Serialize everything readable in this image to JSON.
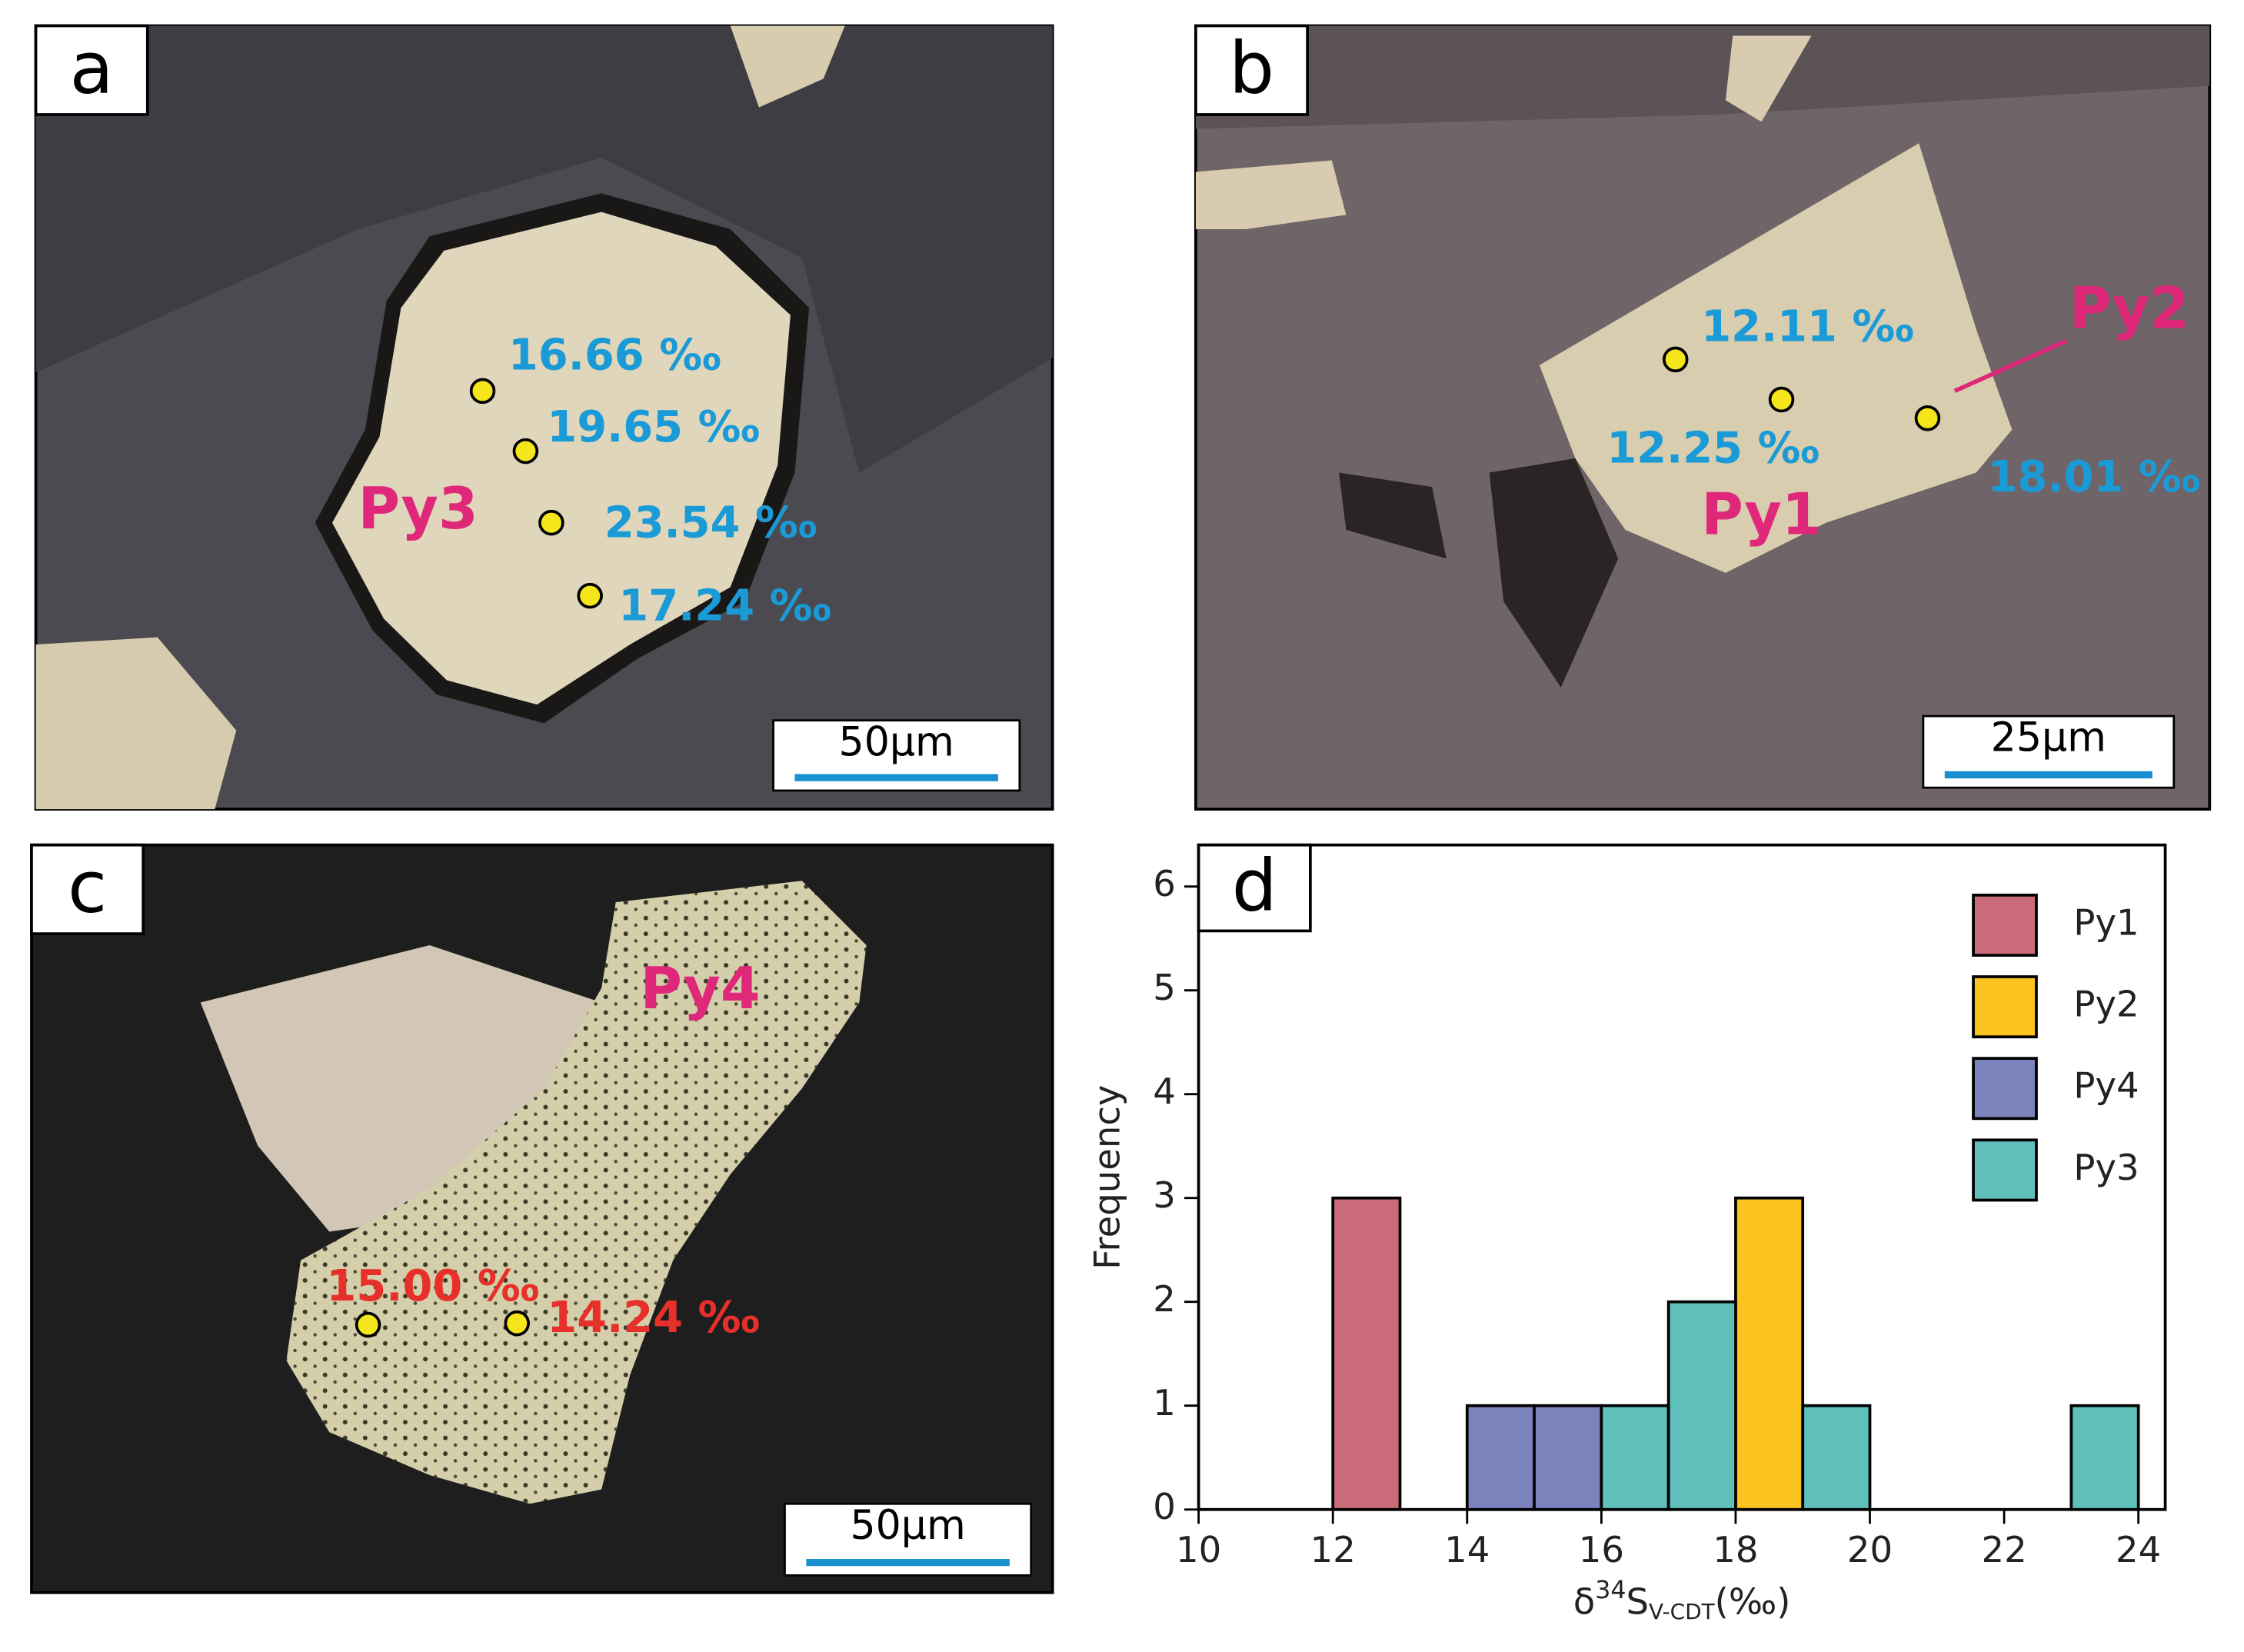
{
  "panels": [
    {
      "label": "a",
      "minerals": [
        "Py3"
      ],
      "points": [
        "16.66 ‰",
        "19.65 ‰",
        "23.54 ‰",
        "17.24 ‰"
      ],
      "scale_bar": "50μm"
    },
    {
      "label": "b",
      "minerals": [
        "Py1",
        "Py2"
      ],
      "points": [
        "12.11 ‰",
        "12.25 ‰",
        "18.01 ‰"
      ],
      "scale_bar": "25μm"
    },
    {
      "label": "c",
      "minerals": [
        "Py4"
      ],
      "points": [
        "15.00 ‰",
        "14.24 ‰"
      ],
      "scale_bar": "50μm"
    }
  ],
  "chart_data": {
    "type": "histogram",
    "panel_label": "d",
    "x_label": {
      "symbol": "δ",
      "sup": "34",
      "main": "S",
      "sub": "V-CDT",
      "unit": "(‰)"
    },
    "y_label": "Frequency",
    "bins": [
      10,
      11,
      12,
      13,
      14,
      15,
      16,
      17,
      18,
      19,
      20,
      21,
      22,
      23,
      24
    ],
    "series": [
      {
        "name": "Py1",
        "color": "#c96b78",
        "values": [
          0,
          0,
          3,
          0,
          0,
          0,
          0,
          0,
          0,
          0,
          0,
          0,
          0,
          0
        ]
      },
      {
        "name": "Py2",
        "color": "#fbc31f",
        "values": [
          0,
          0,
          0,
          0,
          0,
          0,
          0,
          0,
          3,
          0,
          0,
          0,
          0,
          0
        ]
      },
      {
        "name": "Py4",
        "color": "#7b83bd",
        "values": [
          0,
          0,
          0,
          0,
          1,
          1,
          0,
          0,
          0,
          0,
          0,
          0,
          0,
          0
        ]
      },
      {
        "name": "Py3",
        "color": "#5ebfbb",
        "values": [
          0,
          0,
          0,
          0,
          0,
          0,
          1,
          2,
          0,
          1,
          0,
          0,
          0,
          1
        ]
      }
    ],
    "xlim": [
      10,
      24.4
    ],
    "ylim": [
      0,
      6.4
    ],
    "xticks": [
      10,
      12,
      14,
      16,
      18,
      20,
      22,
      24
    ],
    "yticks": [
      0,
      1,
      2,
      3,
      4,
      5,
      6
    ],
    "legend": "upper right"
  }
}
